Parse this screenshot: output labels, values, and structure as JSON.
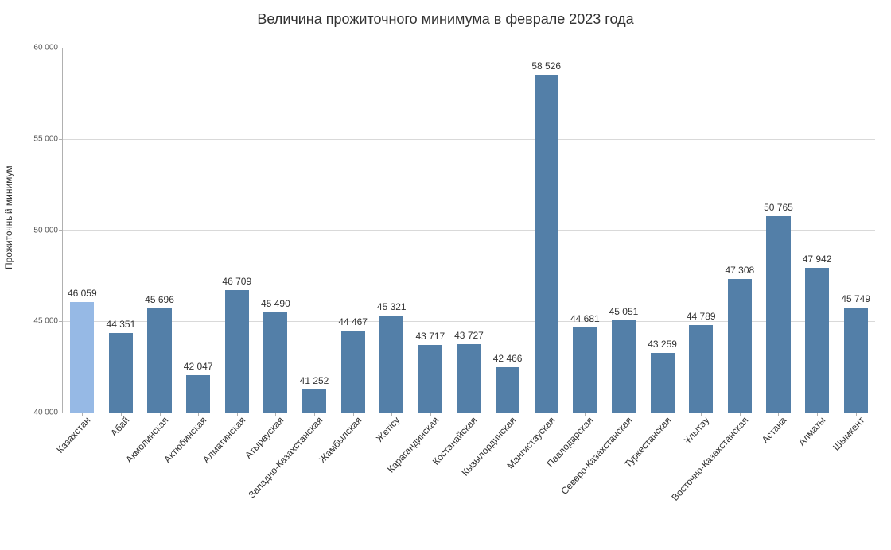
{
  "chart": {
    "type": "bar",
    "title": "Величина прожиточного минимума в феврале 2023 года",
    "title_fontsize": 18,
    "ylabel": "Прожиточный минимум",
    "ylabel_fontsize": 12,
    "ylim": [
      40000,
      60000
    ],
    "yticks": [
      40000,
      45000,
      50000,
      55000,
      60000
    ],
    "ytick_labels": [
      "40 000",
      "45 000",
      "50 000",
      "55 000",
      "60 000"
    ],
    "grid_color": "#d9d9d9",
    "axis_color": "#b0b0b0",
    "background_color": "#ffffff",
    "xlabel_rotation_deg": -48,
    "xlabel_fontsize": 12,
    "value_label_fontsize": 12,
    "bar_width_ratio": 0.62,
    "default_bar_color": "#537fa8",
    "highlight_bar_color": "#96b9e5",
    "categories": [
      {
        "label": "Казахстан",
        "value": 46059,
        "value_label": "46 059",
        "color": "#96b9e5"
      },
      {
        "label": "Абай",
        "value": 44351,
        "value_label": "44 351",
        "color": "#537fa8"
      },
      {
        "label": "Акмолинская",
        "value": 45696,
        "value_label": "45 696",
        "color": "#537fa8"
      },
      {
        "label": "Актюбинская",
        "value": 42047,
        "value_label": "42 047",
        "color": "#537fa8"
      },
      {
        "label": "Алматинская",
        "value": 46709,
        "value_label": "46 709",
        "color": "#537fa8"
      },
      {
        "label": "Атырауская",
        "value": 45490,
        "value_label": "45 490",
        "color": "#537fa8"
      },
      {
        "label": "Западно-Казахстанская",
        "value": 41252,
        "value_label": "41 252",
        "color": "#537fa8"
      },
      {
        "label": "Жамбылская",
        "value": 44467,
        "value_label": "44 467",
        "color": "#537fa8"
      },
      {
        "label": "Жетісу",
        "value": 45321,
        "value_label": "45 321",
        "color": "#537fa8"
      },
      {
        "label": "Карагандинская",
        "value": 43717,
        "value_label": "43 717",
        "color": "#537fa8"
      },
      {
        "label": "Костанайская",
        "value": 43727,
        "value_label": "43 727",
        "color": "#537fa8"
      },
      {
        "label": "Кызылординская",
        "value": 42466,
        "value_label": "42 466",
        "color": "#537fa8"
      },
      {
        "label": "Мангистауская",
        "value": 58526,
        "value_label": "58 526",
        "color": "#537fa8"
      },
      {
        "label": "Павлодарская",
        "value": 44681,
        "value_label": "44 681",
        "color": "#537fa8"
      },
      {
        "label": "Северо-Казахстанская",
        "value": 45051,
        "value_label": "45 051",
        "color": "#537fa8"
      },
      {
        "label": "Туркестанская",
        "value": 43259,
        "value_label": "43 259",
        "color": "#537fa8"
      },
      {
        "label": "Ұлытау",
        "value": 44789,
        "value_label": "44 789",
        "color": "#537fa8"
      },
      {
        "label": "Восточно-Казахстанская",
        "value": 47308,
        "value_label": "47 308",
        "color": "#537fa8"
      },
      {
        "label": "Астана",
        "value": 50765,
        "value_label": "50 765",
        "color": "#537fa8"
      },
      {
        "label": "Алматы",
        "value": 47942,
        "value_label": "47 942",
        "color": "#537fa8"
      },
      {
        "label": "Шымкент",
        "value": 45749,
        "value_label": "45 749",
        "color": "#537fa8"
      }
    ]
  }
}
